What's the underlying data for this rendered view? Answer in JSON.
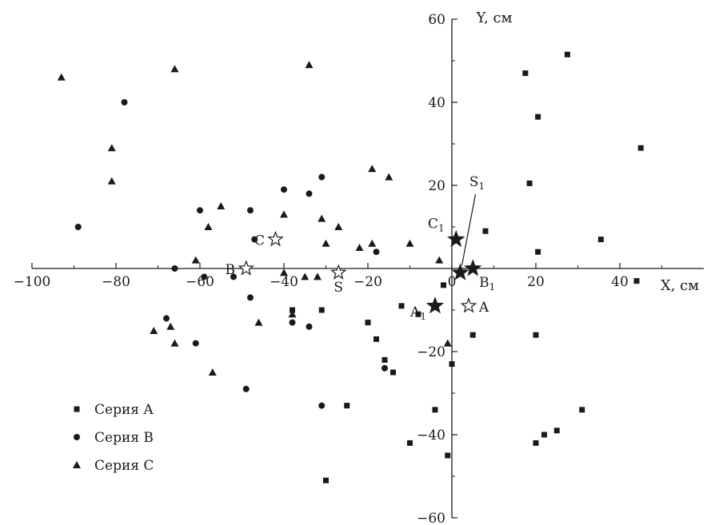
{
  "chart_data": {
    "type": "scatter",
    "title": "",
    "xlabel": "X, см",
    "ylabel": "Y, см",
    "xlim": [
      -100,
      60
    ],
    "ylim": [
      -60,
      60
    ],
    "grid": false,
    "legend_position": "bottom-left",
    "x_ticks": [
      -100,
      -80,
      -60,
      -40,
      -20,
      0,
      20,
      40
    ],
    "y_ticks": [
      -60,
      -40,
      -20,
      20,
      40,
      60
    ],
    "x_tick_labels": [
      "−100",
      "−80",
      "−60",
      "−40",
      "−20",
      "0",
      "20",
      "40"
    ],
    "y_tick_labels": [
      "−60",
      "−40",
      "−20",
      "20",
      "40",
      "60"
    ],
    "series": [
      {
        "name": "Серия A",
        "marker": "square",
        "points": [
          [
            27.5,
            51.5
          ],
          [
            17.5,
            47
          ],
          [
            20.5,
            36.5
          ],
          [
            45,
            29
          ],
          [
            18.5,
            20.5
          ],
          [
            35.5,
            7
          ],
          [
            20.5,
            4
          ],
          [
            8,
            9
          ],
          [
            44,
            -3
          ],
          [
            -2,
            -4
          ],
          [
            -12,
            -9
          ],
          [
            -8,
            -11
          ],
          [
            -38,
            -10
          ],
          [
            -31,
            -10
          ],
          [
            -20,
            -13
          ],
          [
            -18,
            -17
          ],
          [
            -16,
            -22
          ],
          [
            -14,
            -25
          ],
          [
            5,
            -16
          ],
          [
            20,
            -16
          ],
          [
            0,
            -23
          ],
          [
            -25,
            -33
          ],
          [
            -4,
            -34
          ],
          [
            31,
            -34
          ],
          [
            22,
            -40
          ],
          [
            25,
            -39
          ],
          [
            -10,
            -42
          ],
          [
            20,
            -42
          ],
          [
            -1,
            -45
          ],
          [
            -30,
            -51
          ]
        ]
      },
      {
        "name": "Серия B",
        "marker": "circle",
        "points": [
          [
            -78,
            40
          ],
          [
            -89,
            10
          ],
          [
            -31,
            22
          ],
          [
            -40,
            19
          ],
          [
            -34,
            18
          ],
          [
            -60,
            14
          ],
          [
            -48,
            14
          ],
          [
            -47,
            7
          ],
          [
            -18,
            4
          ],
          [
            -66,
            0
          ],
          [
            -59,
            -2
          ],
          [
            -52,
            -2
          ],
          [
            -48,
            -7
          ],
          [
            -38,
            -13
          ],
          [
            -34,
            -14
          ],
          [
            -68,
            -12
          ],
          [
            -61,
            -18
          ],
          [
            -16,
            -24
          ],
          [
            -49,
            -29
          ],
          [
            -31,
            -33
          ]
        ]
      },
      {
        "name": "Серия C",
        "marker": "triangle",
        "points": [
          [
            -93,
            46
          ],
          [
            -66,
            48
          ],
          [
            -34,
            49
          ],
          [
            -81,
            29
          ],
          [
            -81,
            21
          ],
          [
            -19,
            24
          ],
          [
            -15,
            22
          ],
          [
            -40,
            13
          ],
          [
            -55,
            15
          ],
          [
            -31,
            12
          ],
          [
            -58,
            10
          ],
          [
            -27,
            10
          ],
          [
            -30,
            6
          ],
          [
            -19,
            6
          ],
          [
            -10,
            6
          ],
          [
            -22,
            5
          ],
          [
            -61,
            2
          ],
          [
            -3,
            2
          ],
          [
            -40,
            -1
          ],
          [
            -35,
            -2
          ],
          [
            -32,
            -2
          ],
          [
            -38,
            -11
          ],
          [
            -46,
            -13
          ],
          [
            -71,
            -15
          ],
          [
            -67,
            -14
          ],
          [
            -66,
            -18
          ],
          [
            -57,
            -25
          ],
          [
            -1,
            -18
          ]
        ]
      }
    ],
    "annotations": [
      {
        "label": "C",
        "x": -42,
        "y": 7,
        "marker": "open-star",
        "text_side": "left"
      },
      {
        "label": "B",
        "x": -49,
        "y": 0,
        "marker": "open-star",
        "text_side": "left"
      },
      {
        "label": "S",
        "x": -27,
        "y": -1,
        "marker": "open-star",
        "text_side": "below"
      },
      {
        "label": "A",
        "x": 4,
        "y": -9,
        "marker": "open-star",
        "text_side": "right"
      },
      {
        "label": "C",
        "sub": "1",
        "x": 1,
        "y": 7,
        "marker": "filled-star",
        "text_side": "upper-left"
      },
      {
        "label": "B",
        "sub": "1",
        "x": 5,
        "y": 0,
        "marker": "filled-star",
        "text_side": "lower-right"
      },
      {
        "label": "S",
        "sub": "1",
        "x": 2,
        "y": -1,
        "marker": "filled-star",
        "text_side": "above-arrow",
        "label_x": 6,
        "label_y": 19
      },
      {
        "label": "A",
        "sub": "1",
        "x": -4,
        "y": -9,
        "marker": "filled-star",
        "text_side": "lower-left"
      }
    ]
  }
}
